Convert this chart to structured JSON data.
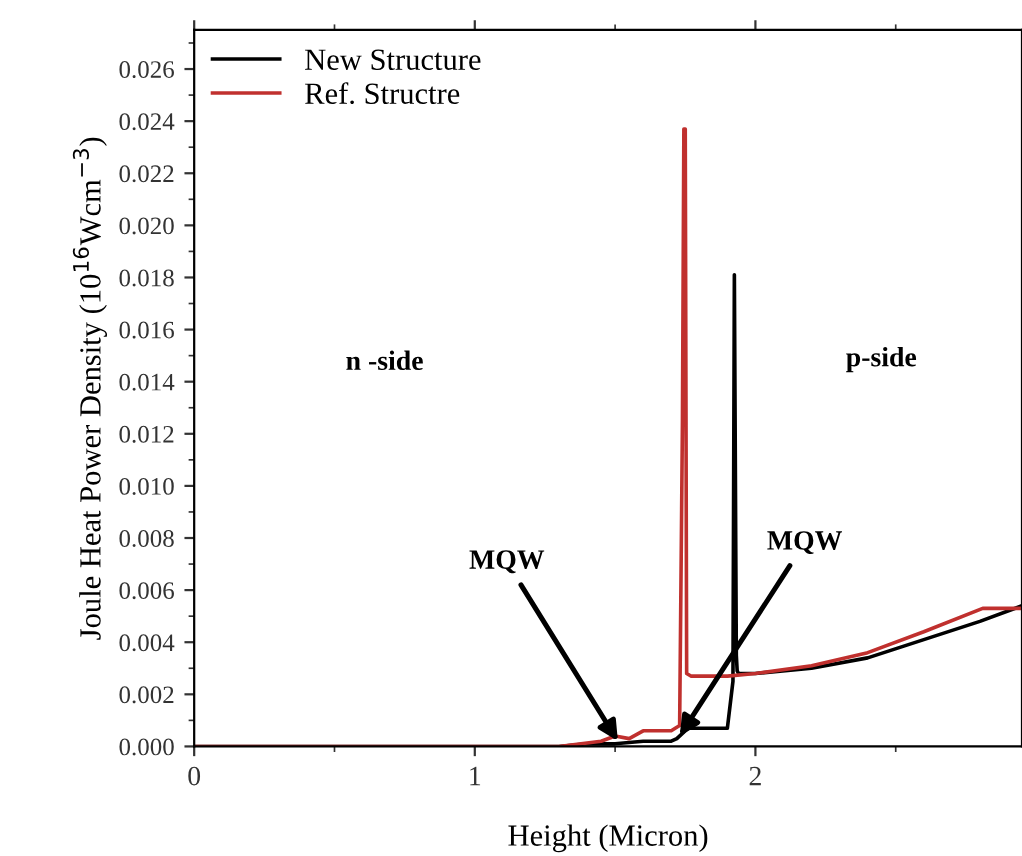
{
  "chart_data": {
    "type": "line",
    "xlabel": "Height (Micron)",
    "ylabel": "Joule Heat Power Density (10$^{16}$Wcm$^{−3}$)",
    "xlim": [
      0,
      2.95
    ],
    "ylim": [
      0,
      0.0275
    ],
    "xticks": [
      0,
      1,
      2
    ],
    "yticks": [
      {
        "value": 0,
        "label": "0.000"
      },
      {
        "value": 0.002,
        "label": "0.002"
      },
      {
        "value": 0.004,
        "label": "0.004"
      },
      {
        "value": 0.006,
        "label": "0.006"
      },
      {
        "value": 0.008,
        "label": "0.008"
      },
      {
        "value": 0.01,
        "label": "0.010"
      },
      {
        "value": 0.012,
        "label": "0.012"
      },
      {
        "value": 0.014,
        "label": "0.014"
      },
      {
        "value": 0.016,
        "label": "0.016"
      },
      {
        "value": 0.018,
        "label": "0.018"
      },
      {
        "value": 0.02,
        "label": "0.020"
      },
      {
        "value": 0.022,
        "label": "0.022"
      },
      {
        "value": 0.024,
        "label": "0.024"
      },
      {
        "value": 0.026,
        "label": "0.026"
      }
    ],
    "grid": false,
    "legend": "top left",
    "marker": "none",
    "line_style": "solid",
    "series": [
      {
        "name": "New Structure",
        "color": "#000000",
        "x": [
          0,
          1.3,
          1.4,
          1.5,
          1.6,
          1.7,
          1.72,
          1.74,
          1.76,
          1.8,
          1.9,
          1.92,
          1.925,
          1.93,
          1.932,
          1.935,
          1.94,
          2.0,
          2.2,
          2.4,
          2.6,
          2.8,
          2.95
        ],
        "values": [
          0,
          0,
          0.0001,
          0.0001,
          0.0002,
          0.0002,
          0.0003,
          0.0005,
          0.0007,
          0.0007,
          0.0007,
          0.0025,
          0.0181,
          0.0076,
          0.0035,
          0.0029,
          0.0028,
          0.0028,
          0.003,
          0.0034,
          0.0041,
          0.0048,
          0.0054
        ]
      },
      {
        "name": "Ref. Structre",
        "color": "#c0302e",
        "x": [
          0,
          1.3,
          1.45,
          1.5,
          1.55,
          1.6,
          1.7,
          1.73,
          1.74,
          1.745,
          1.75,
          1.755,
          1.77,
          1.9,
          2.0,
          2.2,
          2.4,
          2.6,
          2.81,
          2.95
        ],
        "values": [
          0,
          0,
          0.0002,
          0.0004,
          0.0003,
          0.0006,
          0.0006,
          0.0008,
          0.0125,
          0.0237,
          0.0237,
          0.0028,
          0.0027,
          0.0027,
          0.0028,
          0.0031,
          0.0036,
          0.0044,
          0.0053,
          0.0053
        ]
      }
    ],
    "annotations": [
      "n -side",
      "p-side",
      {
        "text": "MQW",
        "x": 1.51,
        "y": 0.0002
      },
      {
        "text": "MQW",
        "x": 1.73,
        "y": 0.0004
      }
    ]
  }
}
